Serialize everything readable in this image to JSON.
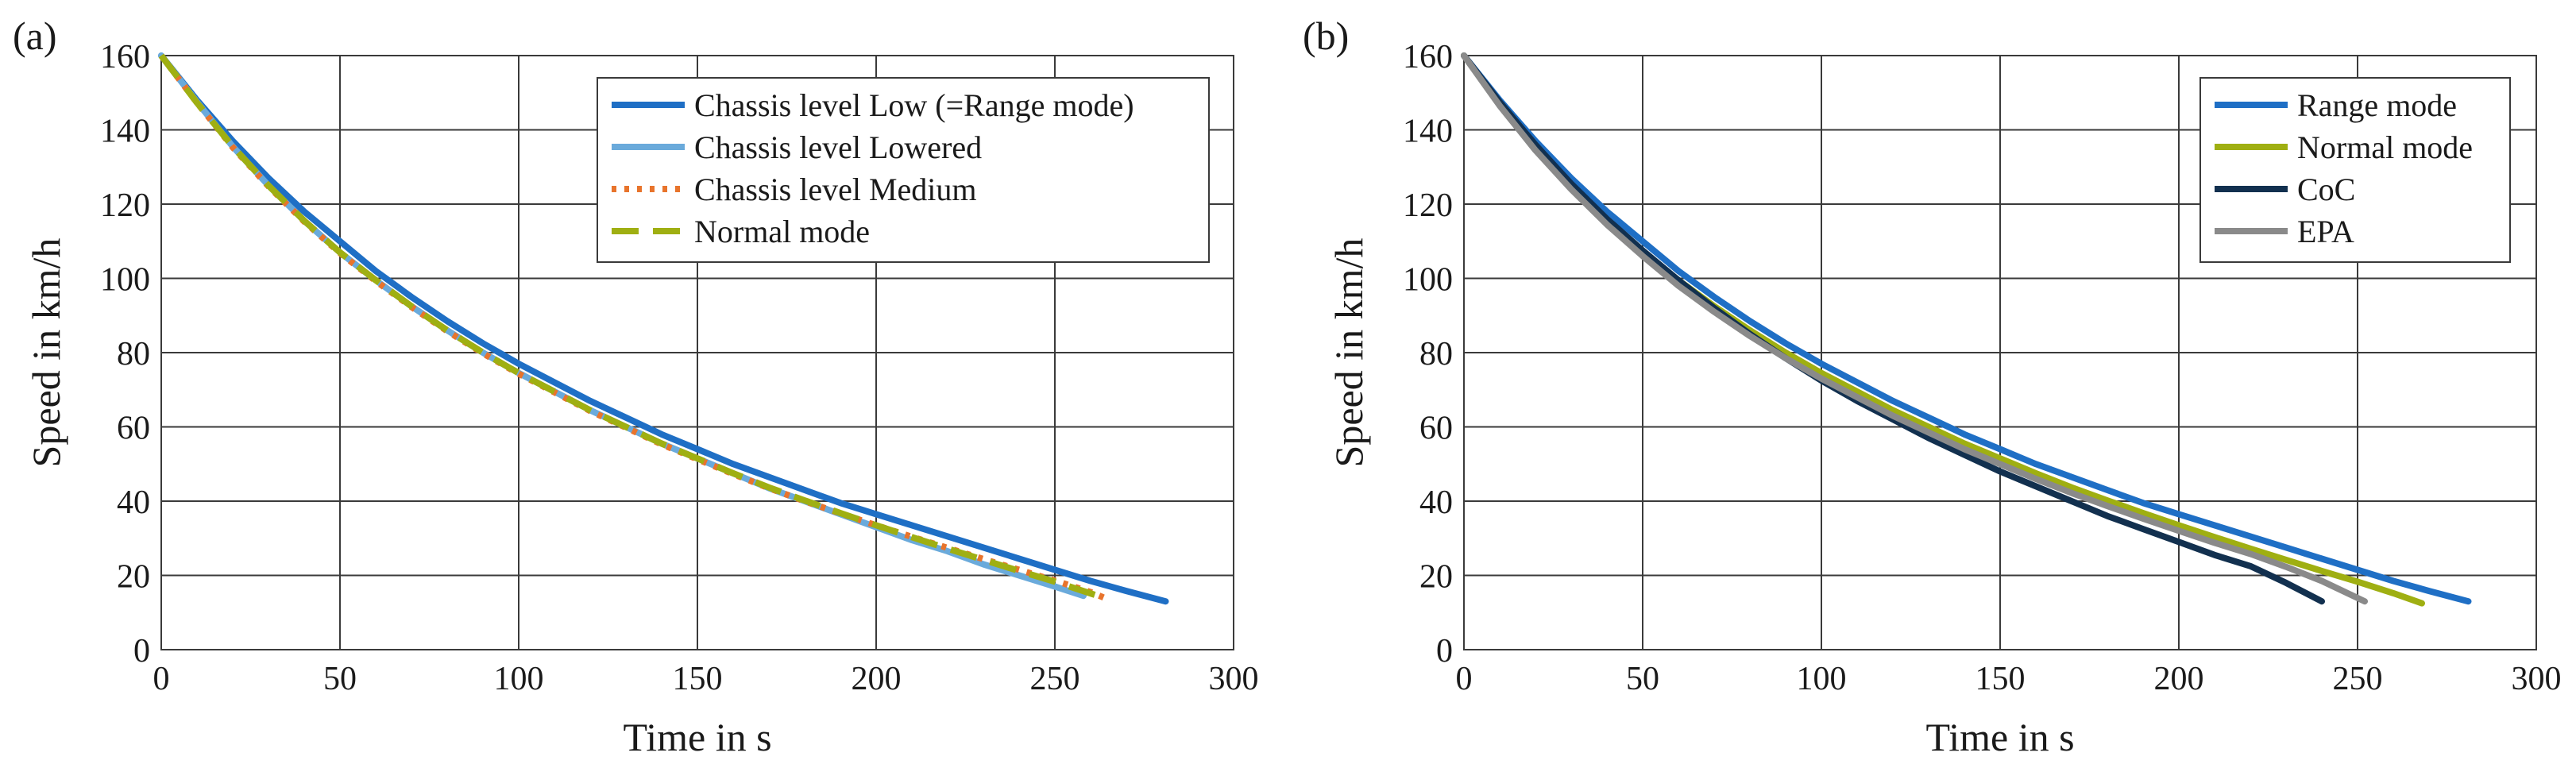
{
  "chart_data": [
    {
      "panel_label": "(a)",
      "type": "line",
      "xlabel": "Time in s",
      "ylabel": "Speed in km/h",
      "xlim": [
        0,
        300
      ],
      "ylim": [
        0,
        160
      ],
      "xticks": [
        0,
        50,
        100,
        150,
        200,
        250,
        300
      ],
      "yticks": [
        0,
        20,
        40,
        60,
        80,
        100,
        120,
        140,
        160
      ],
      "grid": true,
      "legend_position": "top-right",
      "series": [
        {
          "name": "Chassis level Low (=Range mode)",
          "color": "#1f6fc5",
          "dash": "solid",
          "x": [
            0,
            10,
            20,
            30,
            40,
            50,
            60,
            70,
            80,
            90,
            100,
            110,
            120,
            130,
            140,
            150,
            160,
            170,
            180,
            190,
            200,
            210,
            220,
            230,
            240,
            250,
            260,
            270,
            281
          ],
          "y": [
            160,
            148,
            137,
            127,
            118,
            110,
            102,
            95,
            88.5,
            82.5,
            77,
            72,
            67,
            62.5,
            58,
            54,
            50,
            46.5,
            43,
            39.5,
            36.5,
            33.5,
            30.5,
            27.5,
            24.5,
            21.5,
            18.5,
            15.8,
            13
          ]
        },
        {
          "name": "Chassis level Lowered",
          "color": "#6aaadb",
          "dash": "solid",
          "x": [
            0,
            10,
            20,
            30,
            40,
            50,
            60,
            70,
            80,
            90,
            100,
            110,
            120,
            130,
            140,
            150,
            160,
            170,
            180,
            190,
            200,
            210,
            220,
            230,
            240,
            250,
            258
          ],
          "y": [
            160,
            147.5,
            135.5,
            125,
            115.5,
            107,
            99.5,
            92.5,
            86,
            80,
            74.5,
            69.5,
            64.5,
            60,
            55.5,
            51.5,
            47.5,
            43.5,
            40,
            36.5,
            33,
            29.5,
            26.5,
            23,
            20,
            17,
            14.5
          ]
        },
        {
          "name": "Chassis level Medium",
          "color": "#e8742c",
          "dash": "dotted",
          "x": [
            0,
            10,
            20,
            30,
            40,
            50,
            60,
            70,
            80,
            90,
            100,
            110,
            120,
            130,
            140,
            150,
            160,
            170,
            180,
            190,
            200,
            210,
            220,
            230,
            240,
            250,
            260,
            265
          ],
          "y": [
            160,
            147.3,
            135.3,
            124.8,
            115.3,
            106.8,
            99.3,
            92.3,
            85.8,
            79.8,
            74.3,
            69.3,
            64.3,
            59.8,
            55.3,
            51.3,
            47.3,
            43.5,
            40,
            36.7,
            33.5,
            30.4,
            27.4,
            24.4,
            21.5,
            18.6,
            15.5,
            13.5
          ]
        },
        {
          "name": "Normal mode",
          "color": "#9faf12",
          "dash": "dashed",
          "x": [
            0,
            10,
            20,
            30,
            40,
            50,
            60,
            70,
            80,
            90,
            100,
            110,
            120,
            130,
            140,
            150,
            160,
            170,
            180,
            190,
            200,
            210,
            220,
            230,
            240,
            250,
            262
          ],
          "y": [
            160,
            147.3,
            135.5,
            125,
            115.5,
            107,
            99.5,
            92.5,
            86,
            80,
            74.5,
            69.5,
            64.5,
            60,
            55.5,
            51.5,
            47.5,
            43.7,
            40.2,
            36.8,
            33.5,
            30.3,
            27.2,
            24.2,
            21.2,
            18.3,
            14.5
          ]
        }
      ]
    },
    {
      "panel_label": "(b)",
      "type": "line",
      "xlabel": "Time in s",
      "ylabel": "Speed in km/h",
      "xlim": [
        0,
        300
      ],
      "ylim": [
        0,
        160
      ],
      "xticks": [
        0,
        50,
        100,
        150,
        200,
        250,
        300
      ],
      "yticks": [
        0,
        20,
        40,
        60,
        80,
        100,
        120,
        140,
        160
      ],
      "grid": true,
      "legend_position": "top-right",
      "series": [
        {
          "name": "Range mode",
          "color": "#1f6fc5",
          "dash": "solid",
          "x": [
            0,
            10,
            20,
            30,
            40,
            50,
            60,
            70,
            80,
            90,
            100,
            110,
            120,
            130,
            140,
            150,
            160,
            170,
            180,
            190,
            200,
            210,
            220,
            230,
            240,
            250,
            260,
            270,
            281
          ],
          "y": [
            160,
            148,
            137,
            127,
            118,
            110,
            102,
            95,
            88.5,
            82.5,
            77,
            72,
            67,
            62.5,
            58,
            54,
            50,
            46.5,
            43,
            39.5,
            36.5,
            33.5,
            30.5,
            27.5,
            24.5,
            21.5,
            18.5,
            15.8,
            13
          ]
        },
        {
          "name": "Normal mode",
          "color": "#9faf12",
          "dash": "solid",
          "x": [
            0,
            10,
            20,
            30,
            40,
            50,
            60,
            70,
            80,
            90,
            100,
            110,
            120,
            130,
            140,
            150,
            160,
            170,
            180,
            190,
            200,
            210,
            220,
            230,
            240,
            250,
            260,
            268
          ],
          "y": [
            160,
            147,
            135.5,
            125,
            115.5,
            107,
            99.5,
            92.5,
            86,
            80,
            74.5,
            69.5,
            64.5,
            60,
            55.5,
            51.5,
            47.5,
            43.7,
            40.2,
            36.8,
            33.5,
            30.3,
            27.2,
            24.2,
            21.2,
            18.3,
            15.2,
            12.5
          ]
        },
        {
          "name": "CoC",
          "color": "#12304f",
          "dash": "solid",
          "x": [
            0,
            10,
            20,
            30,
            40,
            50,
            60,
            70,
            80,
            90,
            100,
            110,
            120,
            130,
            140,
            150,
            160,
            170,
            180,
            190,
            200,
            210,
            220,
            230,
            240
          ],
          "y": [
            160,
            147.5,
            136,
            125.5,
            116,
            107.5,
            99.5,
            92,
            85,
            78.5,
            72.5,
            67,
            62,
            57,
            52.5,
            48,
            44,
            40,
            36,
            32.5,
            29,
            25.5,
            22.5,
            18,
            13
          ]
        },
        {
          "name": "EPA",
          "color": "#8a8a8a",
          "dash": "solid",
          "x": [
            0,
            10,
            20,
            30,
            40,
            50,
            60,
            70,
            80,
            90,
            100,
            110,
            120,
            130,
            140,
            150,
            160,
            170,
            180,
            190,
            200,
            210,
            220,
            230,
            240,
            252
          ],
          "y": [
            160,
            146.5,
            134.5,
            124,
            114.5,
            106,
            98,
            91,
            84.5,
            78.5,
            73,
            68,
            63,
            58.5,
            54,
            50,
            46,
            42.2,
            38.7,
            35.3,
            32,
            28.8,
            25.8,
            22.3,
            18.5,
            13
          ]
        }
      ]
    }
  ]
}
